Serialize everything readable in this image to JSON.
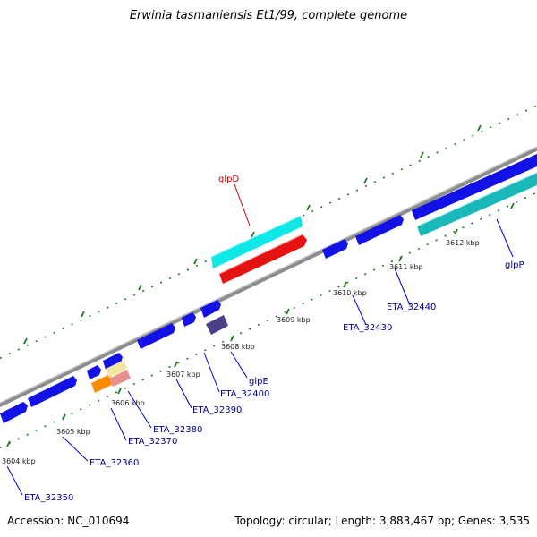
{
  "title": "Erwinia tasmaniensis Et1/99, complete genome",
  "accession": "Accession: NC_010694",
  "topology": "Topology: circular; Length: 3,883,467 bp; Genes: 3,535",
  "ticks": [
    "3604 kbp",
    "3605 kbp",
    "3606 kbp",
    "3607 kbp",
    "3608 kbp",
    "3609 kbp",
    "3610 kbp",
    "3611 kbp",
    "3612 kbp"
  ],
  "genes": {
    "glpD": "glpD",
    "glpE": "glpE",
    "glpP": "glpP",
    "ETA_32350": "ETA_32350",
    "ETA_32360": "ETA_32360",
    "ETA_32370": "ETA_32370",
    "ETA_32380": "ETA_32380",
    "ETA_32390": "ETA_32390",
    "ETA_32400": "ETA_32400",
    "ETA_32430": "ETA_32430",
    "ETA_32440": "ETA_32440"
  },
  "colors": {
    "backbone": "#8c8c8c",
    "dots": "#1a7a1a",
    "cds": "#1212e6",
    "glpD": "#e61212",
    "cyan": "#10e8e8",
    "teal": "#1ab8b8",
    "orange": "#ff8c00",
    "dark": "#4a4088",
    "pink": "#e89090",
    "cream": "#f0e6a0",
    "label": "#00008b"
  }
}
